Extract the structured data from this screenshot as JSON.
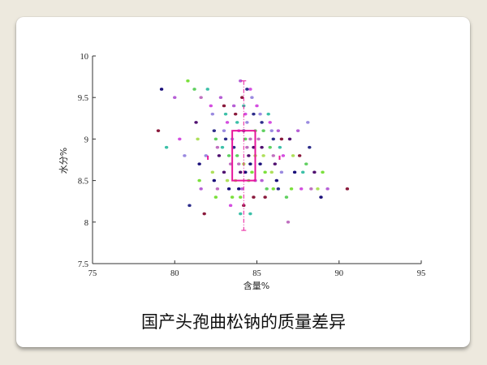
{
  "caption": "国产头孢曲松钠的质量差异",
  "colors": {
    "background": "#ede9de",
    "card": "#ffffff",
    "box": "#e8179b",
    "whisker": "#e8179b"
  },
  "chart_data": {
    "type": "scatter",
    "title": "",
    "xlabel": "含量%",
    "ylabel": "水分%",
    "xlim": [
      75,
      95
    ],
    "ylim": [
      7.5,
      10
    ],
    "xticks": [
      "75",
      "80",
      "85",
      "90",
      "95"
    ],
    "yticks": [
      "7.5",
      "8",
      "8.5",
      "9",
      "9.5",
      "10"
    ],
    "grid": false,
    "boxplot_overlay": {
      "x_center": 84.2,
      "x_q1": 83.5,
      "x_q3": 84.9,
      "y_q1": 8.5,
      "y_q3": 9.1,
      "y_min": 7.9,
      "y_max": 9.7
    },
    "points": [
      [
        79.2,
        9.6
      ],
      [
        80.8,
        9.7
      ],
      [
        80.0,
        9.5
      ],
      [
        79.0,
        9.1
      ],
      [
        79.5,
        8.9
      ],
      [
        80.3,
        9.0
      ],
      [
        80.6,
        8.8
      ],
      [
        80.9,
        8.2
      ],
      [
        81.2,
        9.6
      ],
      [
        81.6,
        9.5
      ],
      [
        81.3,
        9.2
      ],
      [
        81.4,
        9.0
      ],
      [
        81.5,
        8.7
      ],
      [
        81.5,
        8.5
      ],
      [
        81.6,
        8.4
      ],
      [
        81.8,
        8.1
      ],
      [
        82.0,
        9.6
      ],
      [
        82.2,
        9.4
      ],
      [
        82.3,
        9.3
      ],
      [
        82.4,
        9.1
      ],
      [
        82.5,
        9.0
      ],
      [
        82.6,
        8.9
      ],
      [
        82.7,
        8.8
      ],
      [
        82.3,
        8.6
      ],
      [
        82.4,
        8.5
      ],
      [
        82.5,
        8.3
      ],
      [
        82.8,
        9.5
      ],
      [
        83.0,
        9.4
      ],
      [
        83.1,
        9.3
      ],
      [
        83.2,
        9.2
      ],
      [
        83.0,
        9.1
      ],
      [
        83.1,
        9.0
      ],
      [
        83.3,
        8.8
      ],
      [
        83.4,
        8.7
      ],
      [
        83.0,
        8.6
      ],
      [
        83.2,
        8.5
      ],
      [
        83.3,
        8.4
      ],
      [
        83.5,
        8.3
      ],
      [
        83.6,
        9.4
      ],
      [
        83.7,
        9.3
      ],
      [
        83.8,
        9.2
      ],
      [
        83.9,
        9.1
      ],
      [
        83.5,
        9.0
      ],
      [
        83.6,
        8.9
      ],
      [
        83.8,
        8.8
      ],
      [
        83.9,
        8.7
      ],
      [
        84.0,
        8.6
      ],
      [
        83.7,
        8.5
      ],
      [
        83.9,
        8.4
      ],
      [
        84.0,
        8.3
      ],
      [
        84.0,
        9.7
      ],
      [
        84.1,
        9.5
      ],
      [
        84.2,
        9.4
      ],
      [
        84.3,
        9.3
      ],
      [
        84.4,
        9.2
      ],
      [
        84.2,
        9.1
      ],
      [
        84.3,
        9.0
      ],
      [
        84.4,
        8.9
      ],
      [
        84.5,
        8.8
      ],
      [
        84.2,
        8.7
      ],
      [
        84.3,
        8.6
      ],
      [
        84.5,
        8.5
      ],
      [
        84.1,
        8.4
      ],
      [
        84.2,
        8.2
      ],
      [
        84.0,
        8.1
      ],
      [
        84.6,
        9.6
      ],
      [
        84.7,
        9.5
      ],
      [
        84.8,
        9.3
      ],
      [
        84.9,
        9.1
      ],
      [
        84.6,
        9.0
      ],
      [
        84.8,
        8.9
      ],
      [
        84.9,
        8.8
      ],
      [
        84.6,
        8.7
      ],
      [
        84.7,
        8.6
      ],
      [
        84.9,
        8.5
      ],
      [
        84.8,
        8.3
      ],
      [
        84.6,
        8.1
      ],
      [
        85.0,
        9.4
      ],
      [
        85.2,
        9.3
      ],
      [
        85.3,
        9.2
      ],
      [
        85.4,
        9.1
      ],
      [
        85.1,
        9.0
      ],
      [
        85.3,
        8.9
      ],
      [
        85.4,
        8.8
      ],
      [
        85.2,
        8.7
      ],
      [
        85.5,
        8.6
      ],
      [
        85.3,
        8.5
      ],
      [
        85.5,
        8.3
      ],
      [
        85.7,
        9.3
      ],
      [
        85.8,
        9.2
      ],
      [
        85.9,
        9.1
      ],
      [
        86.0,
        9.0
      ],
      [
        85.8,
        8.9
      ],
      [
        86.0,
        8.8
      ],
      [
        86.1,
        8.7
      ],
      [
        85.9,
        8.6
      ],
      [
        86.2,
        8.5
      ],
      [
        86.0,
        8.4
      ],
      [
        86.3,
        9.1
      ],
      [
        86.5,
        9.0
      ],
      [
        86.4,
        8.9
      ],
      [
        86.6,
        8.8
      ],
      [
        86.5,
        8.6
      ],
      [
        86.3,
        8.4
      ],
      [
        86.8,
        8.3
      ],
      [
        86.9,
        8.0
      ],
      [
        87.0,
        9.0
      ],
      [
        87.2,
        8.8
      ],
      [
        87.3,
        8.6
      ],
      [
        87.1,
        8.4
      ],
      [
        87.5,
        9.1
      ],
      [
        87.6,
        8.8
      ],
      [
        87.8,
        8.6
      ],
      [
        87.7,
        8.4
      ],
      [
        88.1,
        9.2
      ],
      [
        88.2,
        8.9
      ],
      [
        88.0,
        8.7
      ],
      [
        88.3,
        8.4
      ],
      [
        88.5,
        8.6
      ],
      [
        88.7,
        8.4
      ],
      [
        88.9,
        8.3
      ],
      [
        89.0,
        8.6
      ],
      [
        89.3,
        8.4
      ],
      [
        90.5,
        8.4
      ],
      [
        82.9,
        8.9
      ],
      [
        83.4,
        8.2
      ],
      [
        81.9,
        8.8
      ],
      [
        84.4,
        9.6
      ],
      [
        85.6,
        8.4
      ],
      [
        82.6,
        8.4
      ]
    ]
  }
}
